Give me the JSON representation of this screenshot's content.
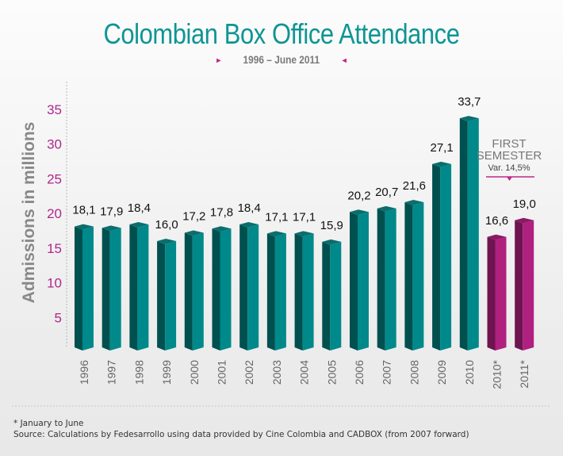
{
  "chart_data": {
    "type": "bar",
    "title": "Colombian Box Office Attendance",
    "subtitle": "1996 – June 2011",
    "xlabel": "",
    "ylabel": "Admissions in millions",
    "ylim": [
      0,
      37
    ],
    "yticks": [
      5,
      10,
      15,
      20,
      25,
      30,
      35
    ],
    "grid": false,
    "categories": [
      "1996",
      "1997",
      "1998",
      "1999",
      "2000",
      "2001",
      "2002",
      "2003",
      "2004",
      "2005",
      "2006",
      "2007",
      "2008",
      "2009",
      "2010",
      "2010*",
      "2011*"
    ],
    "values": [
      18.1,
      17.9,
      18.4,
      16.0,
      17.2,
      17.8,
      18.4,
      17.1,
      17.1,
      15.9,
      20.2,
      20.7,
      21.6,
      27.1,
      33.7,
      16.6,
      19.0
    ],
    "value_labels": [
      "18,1",
      "17,9",
      "18,4",
      "16,0",
      "17,2",
      "17,8",
      "18,4",
      "17,1",
      "17,1",
      "15,9",
      "20,2",
      "20,7",
      "21,6",
      "27,1",
      "33,7",
      "16,6",
      "19,0"
    ],
    "highlight": [
      false,
      false,
      false,
      false,
      false,
      false,
      false,
      false,
      false,
      false,
      false,
      false,
      false,
      false,
      false,
      true,
      true
    ],
    "annotation": {
      "heading_line1": "FIRST",
      "heading_line2": "SEMESTER",
      "text": "Var. 14,5%",
      "applies_to": [
        "2010*",
        "2011*"
      ]
    },
    "colors": {
      "bar_front": "#00898a",
      "bar_side": "#00504f",
      "bar_top": "#0a6e6d",
      "highlight_front": "#b0207f",
      "highlight_side": "#6e1450",
      "highlight_top": "#8a1a64",
      "tick_color": "#b0268a",
      "title_color": "#0e9594"
    }
  },
  "footer": {
    "note": "* January to June",
    "source": "Source: Calculations by Fedesarrollo using data provided by Cine Colombia and CADBOX (from 2007 forward)"
  },
  "subtitle_arrows": {
    "left": "▸",
    "right": "◂"
  }
}
